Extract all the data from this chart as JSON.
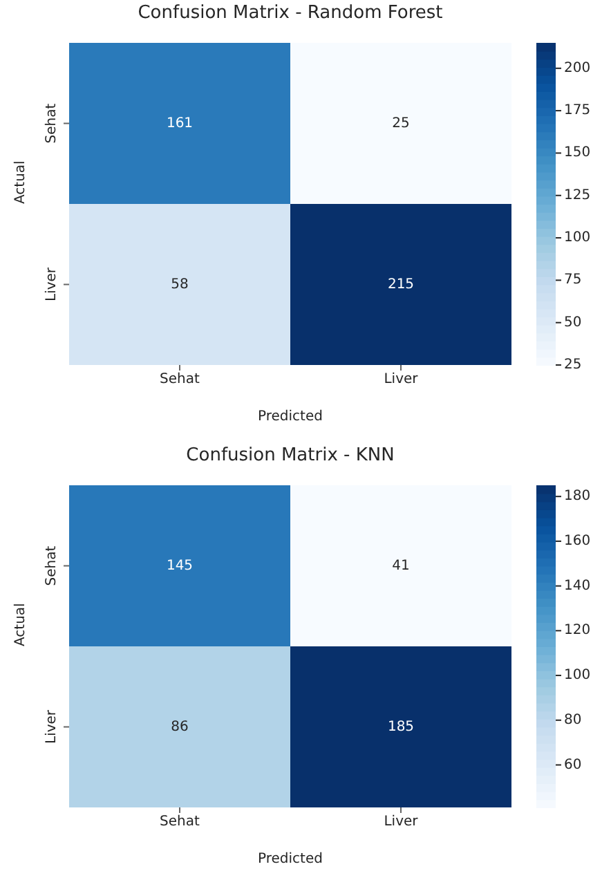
{
  "chart_data": [
    {
      "type": "heatmap",
      "title": "Confusion Matrix - Random Forest",
      "xlabel": "Predicted",
      "ylabel": "Actual",
      "categories": [
        "Sehat",
        "Liver"
      ],
      "y_categories": [
        "Sehat",
        "Liver"
      ],
      "cells": [
        [
          161,
          25
        ],
        [
          58,
          215
        ]
      ],
      "clim": [
        25,
        215
      ],
      "cticks": [
        25,
        50,
        75,
        100,
        125,
        150,
        175,
        200
      ],
      "data_labels": true
    },
    {
      "type": "heatmap",
      "title": "Confusion Matrix - KNN",
      "xlabel": "Predicted",
      "ylabel": "Actual",
      "categories": [
        "Sehat",
        "Liver"
      ],
      "y_categories": [
        "Sehat",
        "Liver"
      ],
      "cells": [
        [
          145,
          41
        ],
        [
          86,
          185
        ]
      ],
      "clim": [
        41,
        185
      ],
      "cticks": [
        60,
        80,
        100,
        120,
        140,
        160,
        180
      ],
      "data_labels": true
    }
  ]
}
